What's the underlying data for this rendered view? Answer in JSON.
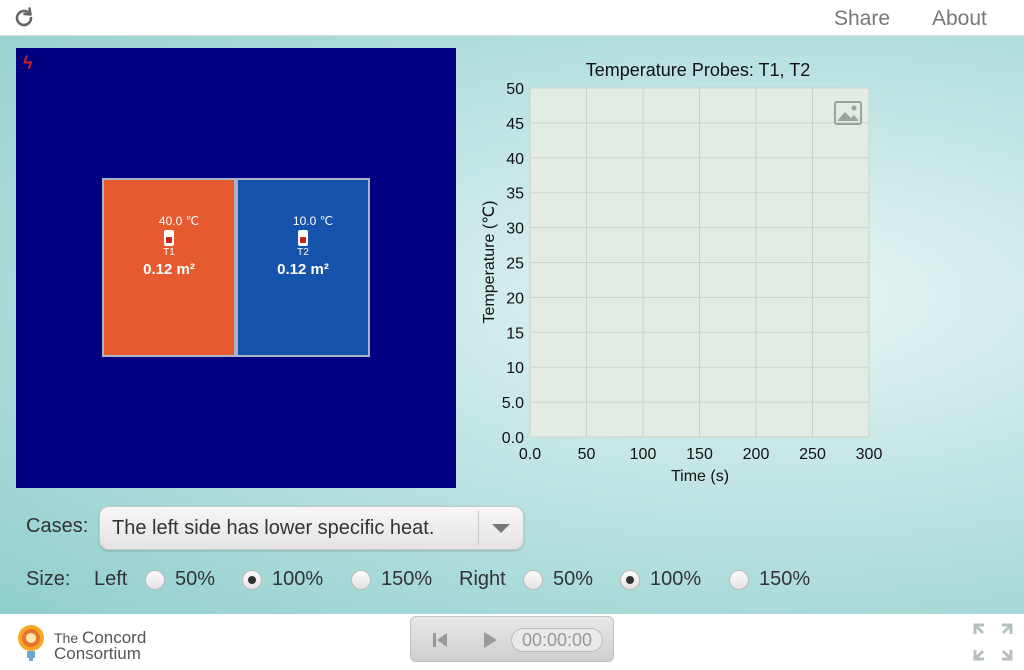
{
  "topbar": {
    "share_label": "Share",
    "about_label": "About"
  },
  "simulation": {
    "left_block": {
      "temperature": "40.0 ℃",
      "probe_name": "T1",
      "area": "0.12 m²"
    },
    "right_block": {
      "temperature": "10.0 ℃",
      "probe_name": "T2",
      "area": "0.12 m²"
    },
    "colors": {
      "background": "#000080",
      "left": "#e55a2f",
      "right": "#1553ac"
    }
  },
  "chart_data": {
    "type": "line",
    "title": "Temperature Probes: T1, T2",
    "xlabel": "Time (s)",
    "ylabel": "Temperature (℃)",
    "xlim": [
      0,
      300
    ],
    "ylim": [
      0,
      50
    ],
    "x_ticks": [
      "0.0",
      "50",
      "100",
      "150",
      "200",
      "250",
      "300"
    ],
    "y_ticks": [
      "0.0",
      "5.0",
      "10",
      "15",
      "20",
      "25",
      "30",
      "35",
      "40",
      "45",
      "50"
    ],
    "grid": true,
    "series": []
  },
  "controls": {
    "cases_label": "Cases:",
    "cases_selected": "The left side has lower specific heat.",
    "size_label": "Size:",
    "left_label": "Left",
    "right_label": "Right",
    "left_options": [
      {
        "label": "50%",
        "selected": false
      },
      {
        "label": "100%",
        "selected": true
      },
      {
        "label": "150%",
        "selected": false
      }
    ],
    "right_options": [
      {
        "label": "50%",
        "selected": false
      },
      {
        "label": "100%",
        "selected": true
      },
      {
        "label": "150%",
        "selected": false
      }
    ]
  },
  "bottombar": {
    "logo_line1_small": "The",
    "logo_line1": "Concord",
    "logo_line2": "Consortium",
    "timer": "00:00:00"
  }
}
